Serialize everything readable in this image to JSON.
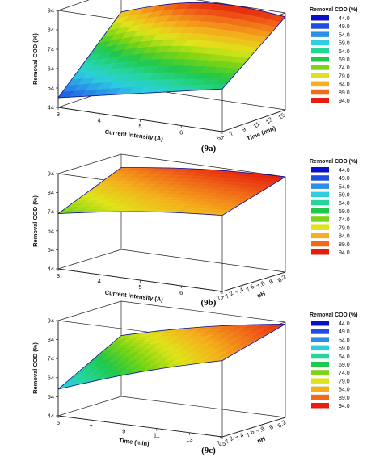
{
  "chart_data": [
    {
      "type": "surface",
      "caption": "(9a)",
      "xlabel": "Current intensity (A)",
      "ylabel": "Time (min)",
      "zlabel": "Removal COD (%)",
      "xticks": [
        3,
        4,
        5,
        6,
        7
      ],
      "yticks": [
        5,
        7,
        9,
        11,
        13,
        15
      ],
      "zticks": [
        44,
        54,
        64,
        74,
        84,
        94
      ],
      "xlim": [
        3,
        7
      ],
      "ylim": [
        5,
        15
      ],
      "zlim": [
        44,
        94
      ],
      "corners": {
        "x_min_y_min": 49,
        "x_max_y_min": 66,
        "x_min_y_max": 82,
        "x_max_y_max": 92
      },
      "legend": {
        "title": "Removal COD (%)",
        "levels": [
          "44.0",
          "49.0",
          "54.0",
          "59.0",
          "64.0",
          "69.0",
          "74.0",
          "79.0",
          "84.0",
          "89.0",
          "94.0"
        ]
      }
    },
    {
      "type": "surface",
      "caption": "(9b)",
      "xlabel": "Current intensity (A)",
      "ylabel": "pH",
      "zlabel": "Removal COD (%)",
      "xticks": [
        3,
        4,
        5,
        6,
        7
      ],
      "yticks": [
        7,
        7.2,
        7.4,
        7.6,
        7.8,
        8,
        8.2
      ],
      "zticks": [
        44,
        54,
        64,
        74,
        84,
        94
      ],
      "xlim": [
        3,
        7
      ],
      "ylim": [
        7,
        8.2
      ],
      "zlim": [
        44,
        94
      ],
      "corners": {
        "x_min_y_min": 73,
        "x_max_y_min": 84,
        "x_min_y_max": 87,
        "x_max_y_max": 94
      },
      "legend": {
        "title": "Removal COD (%)",
        "levels": [
          "44.0",
          "49.0",
          "54.0",
          "59.0",
          "64.0",
          "69.0",
          "74.0",
          "79.0",
          "84.0",
          "89.0",
          "94.0"
        ]
      }
    },
    {
      "type": "surface",
      "caption": "(9c)",
      "xlabel": "Time (min)",
      "ylabel": "pH",
      "zlabel": "Removal COD (%)",
      "xticks": [
        5,
        7,
        9,
        11,
        13,
        15
      ],
      "yticks": [
        7,
        7.2,
        7.4,
        7.6,
        7.8,
        8,
        8.2
      ],
      "zticks": [
        44,
        54,
        64,
        74,
        84,
        94
      ],
      "xlim": [
        5,
        15
      ],
      "ylim": [
        7,
        8.2
      ],
      "zlim": [
        44,
        94
      ],
      "corners": {
        "x_min_y_min": 58,
        "x_max_y_min": 84,
        "x_min_y_max": 76,
        "x_max_y_max": 93
      },
      "legend": {
        "title": "Removal COD (%)",
        "levels": [
          "44.0",
          "49.0",
          "54.0",
          "59.0",
          "64.0",
          "69.0",
          "74.0",
          "79.0",
          "84.0",
          "89.0",
          "94.0"
        ]
      }
    }
  ],
  "colors": {
    "scale": [
      "#0a10c8",
      "#1f4fe0",
      "#2b8ee8",
      "#2ccfe0",
      "#25d59a",
      "#1fc84a",
      "#7ad414",
      "#dfe41a",
      "#f4b01c",
      "#f06a18",
      "#e51c0e"
    ],
    "axis": "#222222"
  }
}
